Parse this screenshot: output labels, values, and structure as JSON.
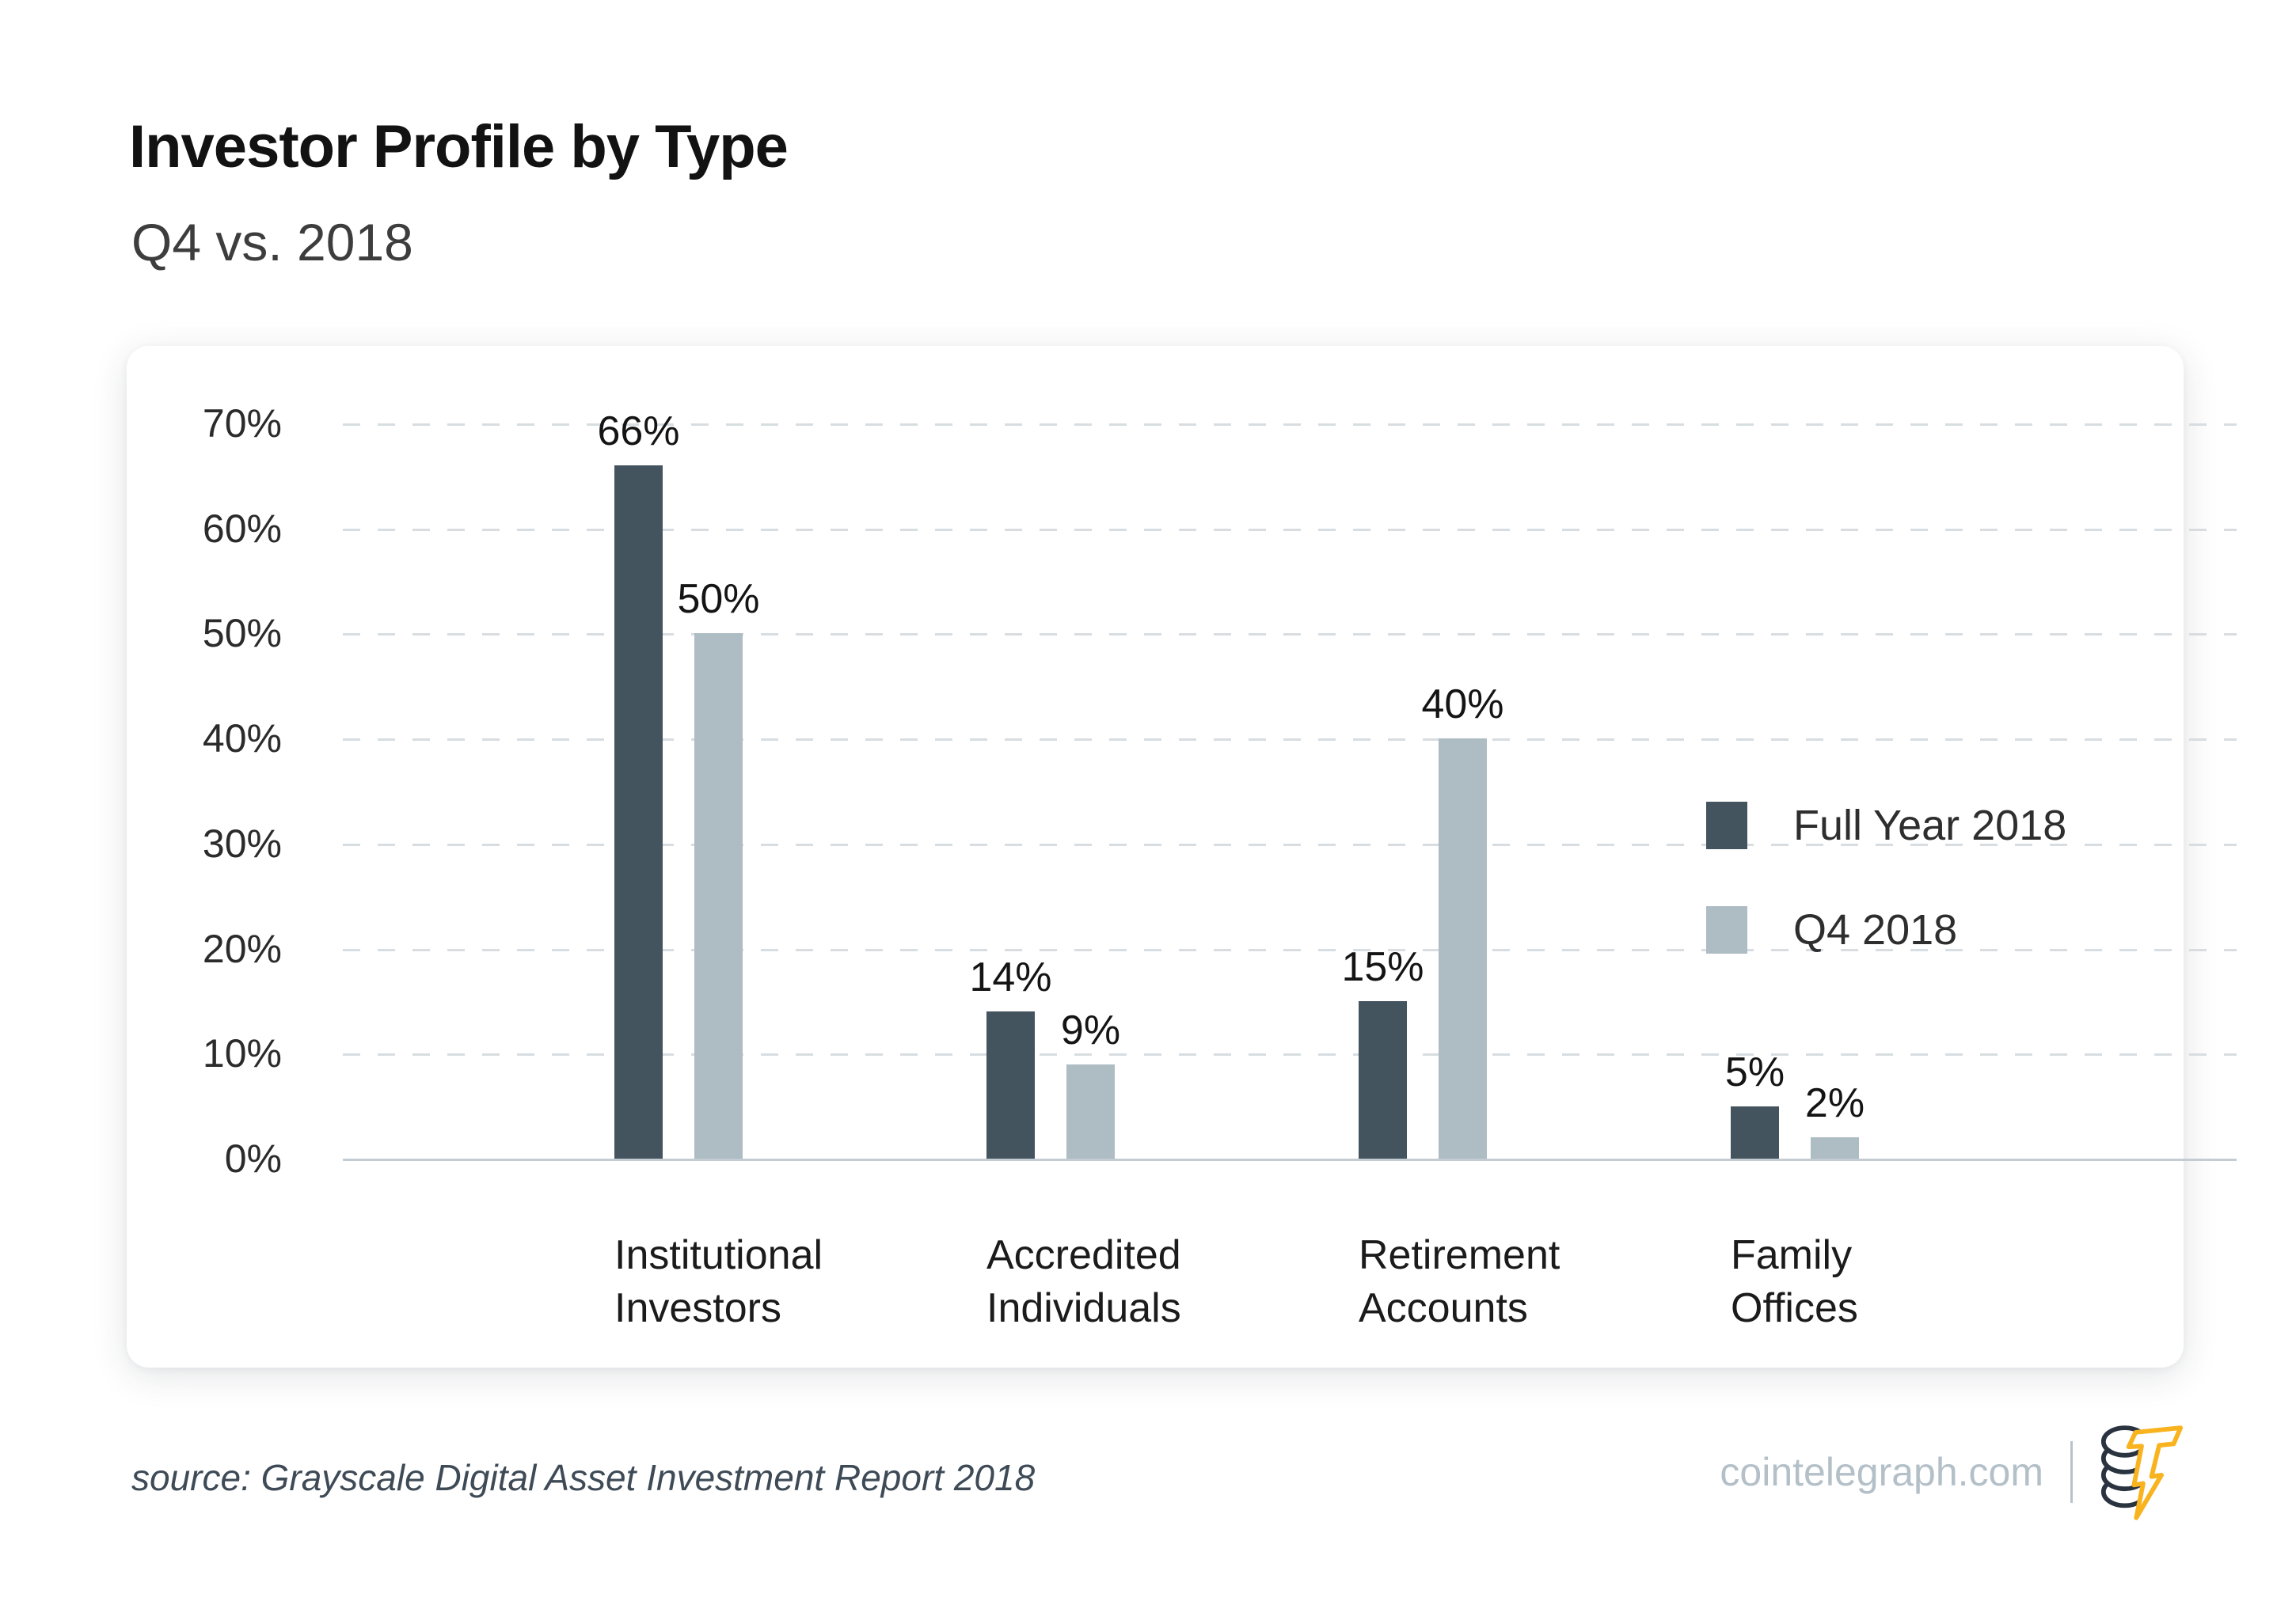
{
  "header": {
    "title": "Investor Profile by Type",
    "subtitle": "Q4 vs. 2018"
  },
  "chart_data": {
    "type": "bar",
    "title": "Investor Profile by Type",
    "subtitle": "Q4 vs. 2018",
    "categories": [
      [
        "Institutional",
        "Investors"
      ],
      [
        "Accredited",
        "Individuals"
      ],
      [
        "Retirement",
        "Accounts"
      ],
      [
        "Family",
        "Offices"
      ]
    ],
    "series": [
      {
        "name": "Full Year 2018",
        "color": "#44545f",
        "values": [
          66,
          14,
          15,
          5
        ],
        "labels": [
          "66%",
          "14%",
          "15%",
          "5%"
        ]
      },
      {
        "name": "Q4 2018",
        "color": "#aebcc4",
        "values": [
          50,
          9,
          40,
          2
        ],
        "labels": [
          "50%",
          "9%",
          "40%",
          "2%"
        ]
      }
    ],
    "yticks": [
      {
        "value": 70,
        "label": "70%"
      },
      {
        "value": 60,
        "label": "60%"
      },
      {
        "value": 50,
        "label": "50%"
      },
      {
        "value": 40,
        "label": "40%"
      },
      {
        "value": 30,
        "label": "30%"
      },
      {
        "value": 20,
        "label": "20%"
      },
      {
        "value": 10,
        "label": "10%"
      },
      {
        "value": 0,
        "label": "0%"
      }
    ],
    "ylim": [
      0,
      70
    ],
    "grid": "dashed-horizontal",
    "legend_position": "top-right"
  },
  "colors": {
    "series_full_year": "#44545f",
    "series_q4": "#aebcc4",
    "gridline": "#d7dde1",
    "axis_line": "#c3ccd2",
    "logo_navy": "#2a3440",
    "logo_yellow": "#f8b31e"
  },
  "footer": {
    "source": "source: Grayscale Digital Asset Investment Report 2018",
    "site": "cointelegraph.com",
    "logo_icon": "cointelegraph-coin-logo"
  }
}
